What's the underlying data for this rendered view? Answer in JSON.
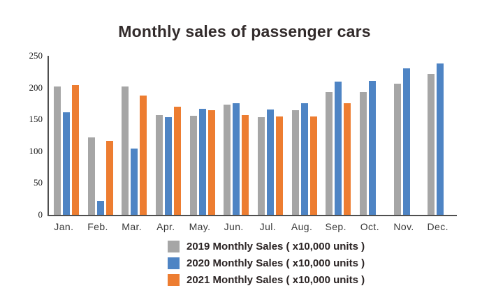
{
  "title": "Monthly sales of passenger cars",
  "chart_data": {
    "type": "bar",
    "title": "Monthly sales of passenger cars",
    "categories": [
      "Jan.",
      "Feb.",
      "Mar.",
      "Apr.",
      "May.",
      "Jun.",
      "Jul.",
      "Aug.",
      "Sep.",
      "Oct.",
      "Nov.",
      "Dec."
    ],
    "series": [
      {
        "name": "2019 Monthly Sales ( x10,000 units )",
        "color": "#a6a6a6",
        "values": [
          202,
          122,
          202,
          157,
          156,
          173,
          153,
          165,
          193,
          193,
          206,
          222
        ]
      },
      {
        "name": "2020 Monthly Sales ( x10,000 units )",
        "color": "#4e84c4",
        "values": [
          161,
          22,
          104,
          154,
          167,
          176,
          166,
          176,
          209,
          211,
          230,
          238
        ]
      },
      {
        "name": "2021 Monthly Sales ( x10,000 units )",
        "color": "#ed7d31",
        "values": [
          204,
          116,
          187,
          170,
          165,
          157,
          155,
          155,
          175,
          null,
          null,
          null
        ]
      }
    ],
    "xlabel": "",
    "ylabel": "",
    "ylim": [
      0,
      250
    ],
    "yticks": [
      0,
      50,
      100,
      150,
      200,
      250
    ],
    "grid": false,
    "legend_position": "bottom",
    "axis_color": "#4f4f4f"
  }
}
